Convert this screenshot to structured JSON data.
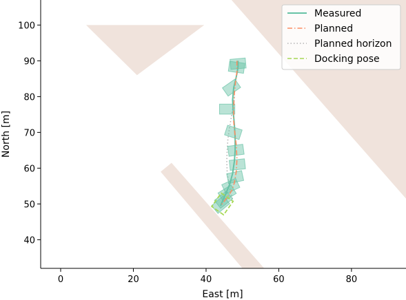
{
  "chart_data": {
    "type": "line",
    "title": "",
    "xlabel": "East [m]",
    "ylabel": "North [m]",
    "xlim": [
      -5.5,
      95
    ],
    "ylim": [
      32,
      107
    ],
    "xticks": [
      0,
      20,
      40,
      60,
      80
    ],
    "yticks": [
      40,
      50,
      60,
      70,
      80,
      90,
      100
    ],
    "grid": false,
    "legend_position": "top-right",
    "obstacle_color": "#f0e3dc",
    "obstacles": [
      {
        "name": "inverted triangle",
        "points": [
          [
            7,
            100
          ],
          [
            39.5,
            100
          ],
          [
            21,
            86
          ]
        ]
      },
      {
        "name": "diagonal strip",
        "points": [
          [
            27.5,
            59
          ],
          [
            30.5,
            61.5
          ],
          [
            56,
            32
          ],
          [
            50,
            32
          ]
        ]
      },
      {
        "name": "large triangle",
        "points": [
          [
            47,
            107
          ],
          [
            95,
            107
          ],
          [
            95,
            51.5
          ]
        ]
      }
    ],
    "series": [
      {
        "name": "Measured",
        "style": "solid",
        "color": "#66c2a5",
        "x": [
          44.0,
          44.6,
          45.5,
          46.5,
          47.3,
          47.8,
          48.0,
          48.0,
          47.8,
          47.5,
          47.3,
          47.6,
          48.2,
          48.6,
          48.8,
          48.8
        ],
        "y": [
          49.5,
          51.0,
          53.0,
          55.5,
          58.5,
          62.0,
          65.0,
          68.5,
          72.0,
          75.5,
          79.0,
          82.5,
          85.0,
          87.0,
          88.5,
          90.0
        ]
      },
      {
        "name": "Planned",
        "style": "dashdot",
        "color": "#fc8d62",
        "x": [
          48.5,
          48.5,
          48.1,
          47.8,
          47.6,
          47.6,
          47.9,
          48.3,
          48.5,
          48.3,
          47.8,
          47.2,
          46.3,
          45.2,
          44.0
        ],
        "y": [
          90.0,
          87.0,
          84.0,
          81.0,
          77.0,
          73.0,
          70.0,
          66.5,
          62.5,
          59.0,
          56.0,
          54.0,
          52.5,
          51.0,
          49.5
        ]
      },
      {
        "name": "Planned horizon",
        "style": "dotted",
        "color": "#b3b3b3",
        "x": [
          47.8,
          47.4,
          46.9,
          46.4,
          46.0,
          45.8,
          45.7,
          45.8,
          46.2,
          46.8,
          47.5
        ],
        "y": [
          80.0,
          77.0,
          74.0,
          71.0,
          68.0,
          65.0,
          62.0,
          59.0,
          56.0,
          53.0,
          50.5
        ]
      }
    ],
    "docking_pose": {
      "name": "Docking pose",
      "style": "dashed",
      "color": "#a6d854",
      "center": [
        44.5,
        50.0
      ],
      "width": 4.0,
      "height": 4.6,
      "heading_deg": -35
    },
    "vessel_footprints": {
      "color": "#66c2a5",
      "width": 4.2,
      "height": 2.8,
      "poses": [
        {
          "x": 48.8,
          "y": 89.2,
          "deg": 5
        },
        {
          "x": 48.4,
          "y": 88.2,
          "deg": -8
        },
        {
          "x": 47.0,
          "y": 82.5,
          "deg": 35
        },
        {
          "x": 45.8,
          "y": 76.5,
          "deg": 0
        },
        {
          "x": 47.5,
          "y": 70.0,
          "deg": -18
        },
        {
          "x": 48.2,
          "y": 65.0,
          "deg": 8
        },
        {
          "x": 48.6,
          "y": 61.0,
          "deg": 6
        },
        {
          "x": 48.0,
          "y": 57.5,
          "deg": 12
        },
        {
          "x": 46.8,
          "y": 55.0,
          "deg": 25
        },
        {
          "x": 45.8,
          "y": 53.0,
          "deg": 32
        },
        {
          "x": 44.8,
          "y": 51.2,
          "deg": 38
        },
        {
          "x": 44.0,
          "y": 49.8,
          "deg": 40
        }
      ]
    }
  }
}
